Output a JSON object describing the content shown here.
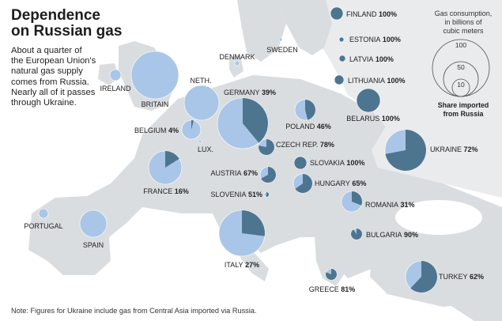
{
  "title": {
    "line1": "Dependence",
    "line2": "on Russian gas"
  },
  "description": "About a quarter of the European Union's natural gas supply comes from Russia. Nearly all of it passes through Ukraine.",
  "note": "Note: Figures for Ukraine include gas from Central Asia imported via Russia.",
  "legend": {
    "title_lines": [
      "Gas consumption,",
      "in billions of",
      "cubic meters"
    ],
    "scale_values": [
      "100",
      "50",
      "10"
    ],
    "caption_lines": [
      "Share imported",
      "from Russia"
    ]
  },
  "colors": {
    "land": "#dadde0",
    "russia_land": "#e9ebed",
    "water": "#ffffff",
    "bubble_light": "#a9c6e8",
    "bubble_dark": "#4d7590",
    "text": "#222222"
  },
  "countries": [
    {
      "name": "FINLAND",
      "share": "100%",
      "share_fraction": 1.0
    },
    {
      "name": "ESTONIA",
      "share": "100%",
      "share_fraction": 1.0
    },
    {
      "name": "LATVIA",
      "share": "100%",
      "share_fraction": 1.0
    },
    {
      "name": "LITHUANIA",
      "share": "100%",
      "share_fraction": 1.0
    },
    {
      "name": "SWEDEN",
      "share": "",
      "share_fraction": 0
    },
    {
      "name": "DENMARK",
      "share": "",
      "share_fraction": 0
    },
    {
      "name": "IRELAND",
      "share": "",
      "share_fraction": 0
    },
    {
      "name": "BRITAIN",
      "share": "",
      "share_fraction": 0
    },
    {
      "name": "NETH.",
      "share": "",
      "share_fraction": 0
    },
    {
      "name": "GERMANY",
      "share": "39%",
      "share_fraction": 0.39
    },
    {
      "name": "POLAND",
      "share": "46%",
      "share_fraction": 0.46
    },
    {
      "name": "BELARUS",
      "share": "100%",
      "share_fraction": 1.0
    },
    {
      "name": "BELGIUM",
      "share": "4%",
      "share_fraction": 0.04
    },
    {
      "name": "LUX.",
      "share": "",
      "share_fraction": 0
    },
    {
      "name": "CZECH REP.",
      "share": "78%",
      "share_fraction": 0.78
    },
    {
      "name": "UKRAINE",
      "share": "72%",
      "share_fraction": 0.72
    },
    {
      "name": "SLOVAKIA",
      "share": "100%",
      "share_fraction": 1.0
    },
    {
      "name": "AUSTRIA",
      "share": "67%",
      "share_fraction": 0.67
    },
    {
      "name": "FRANCE",
      "share": "16%",
      "share_fraction": 0.16
    },
    {
      "name": "HUNGARY",
      "share": "65%",
      "share_fraction": 0.65
    },
    {
      "name": "SLOVENIA",
      "share": "51%",
      "share_fraction": 0.51
    },
    {
      "name": "ROMANIA",
      "share": "31%",
      "share_fraction": 0.31
    },
    {
      "name": "PORTUGAL",
      "share": "",
      "share_fraction": 0
    },
    {
      "name": "SPAIN",
      "share": "",
      "share_fraction": 0
    },
    {
      "name": "BULGARIA",
      "share": "90%",
      "share_fraction": 0.9
    },
    {
      "name": "ITALY",
      "share": "27%",
      "share_fraction": 0.27
    },
    {
      "name": "TURKEY",
      "share": "62%",
      "share_fraction": 0.62
    },
    {
      "name": "GREECE",
      "share": "81%",
      "share_fraction": 0.81
    }
  ]
}
